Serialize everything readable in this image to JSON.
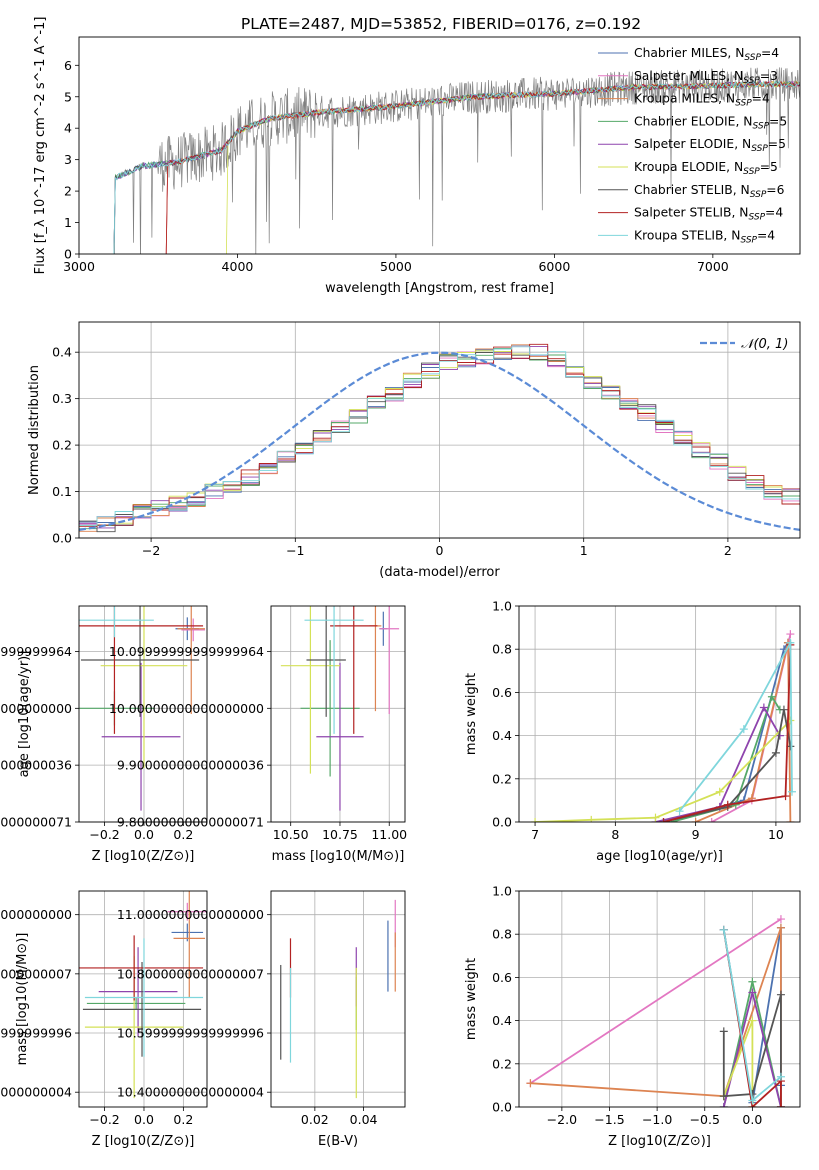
{
  "figure": {
    "title": "PLATE=2487, MJD=53852, FIBERID=0176, z=0.192"
  },
  "series_styles": [
    {
      "name": "Chabrier MILES, N_SSP=4",
      "color": "#4c72b0"
    },
    {
      "name": "Salpeter MILES, N_SSP=3",
      "color": "#e377c2"
    },
    {
      "name": "Kroupa MILES, N_SSP=4",
      "color": "#dd8452"
    },
    {
      "name": "Chabrier ELODIE, N_SSP=5",
      "color": "#55a868"
    },
    {
      "name": "Salpeter ELODIE, N_SSP=5",
      "color": "#8e44ad"
    },
    {
      "name": "Kroupa ELODIE, N_SSP=5",
      "color": "#d4e157"
    },
    {
      "name": "Chabrier STELIB, N_SSP=6",
      "color": "#555555"
    },
    {
      "name": "Salpeter STELIB, N_SSP=4",
      "color": "#b22222"
    },
    {
      "name": "Kroupa STELIB, N_SSP=4",
      "color": "#7fd6dc"
    }
  ],
  "chart_data": [
    {
      "id": "spectrum",
      "type": "line",
      "xlabel": "wavelength [Angstrom, rest frame]",
      "ylabel": "Flux [f_λ 10^-17 erg cm^-2 s^-1 A^-1]",
      "xlim": [
        3000,
        7550
      ],
      "ylim": [
        0,
        6.9
      ],
      "xticks": [
        3000,
        4000,
        5000,
        6000,
        7000
      ],
      "yticks": [
        0,
        1,
        2,
        3,
        4,
        5,
        6
      ],
      "data_color": "#808080",
      "legend": [
        {
          "base": "Chabrier MILES, N",
          "sub": "SSP",
          "rest": "=4"
        },
        {
          "base": "Salpeter MILES, N",
          "sub": "SSP",
          "rest": "=3"
        },
        {
          "base": "Kroupa MILES, N",
          "sub": "SSP",
          "rest": "=4"
        },
        {
          "base": "Chabrier ELODIE, N",
          "sub": "SSP",
          "rest": "=5"
        },
        {
          "base": "Salpeter ELODIE, N",
          "sub": "SSP",
          "rest": "=5"
        },
        {
          "base": "Kroupa ELODIE, N",
          "sub": "SSP",
          "rest": "=5"
        },
        {
          "base": "Chabrier STELIB, N",
          "sub": "SSP",
          "rest": "=6"
        },
        {
          "base": "Salpeter STELIB, N",
          "sub": "SSP",
          "rest": "=4"
        },
        {
          "base": "Kroupa STELIB, N",
          "sub": "SSP",
          "rest": "=4"
        }
      ],
      "continuum_knots": [
        [
          3220,
          2.4
        ],
        [
          3400,
          2.8
        ],
        [
          3600,
          2.9
        ],
        [
          3900,
          3.3
        ],
        [
          4000,
          3.9
        ],
        [
          4200,
          4.3
        ],
        [
          4500,
          4.5
        ],
        [
          5000,
          4.7
        ],
        [
          5500,
          5.0
        ],
        [
          6000,
          5.1
        ],
        [
          6500,
          5.3
        ],
        [
          7000,
          5.35
        ],
        [
          7300,
          5.4
        ]
      ],
      "data_start": 3220
    },
    {
      "id": "residuals",
      "type": "histogram",
      "xlabel": "(data-model)/error",
      "ylabel": "Normed distribution",
      "xlim": [
        -2.5,
        2.5
      ],
      "ylim": [
        0,
        0.465
      ],
      "xticks": [
        -2,
        -1,
        0,
        1,
        2
      ],
      "yticks": [
        0.0,
        0.1,
        0.2,
        0.3,
        0.4
      ],
      "bins_edges": [
        -2.5,
        2.5
      ],
      "nbins": 40,
      "base_values": [
        0.022,
        0.03,
        0.04,
        0.055,
        0.065,
        0.075,
        0.085,
        0.1,
        0.115,
        0.13,
        0.15,
        0.17,
        0.195,
        0.22,
        0.24,
        0.26,
        0.29,
        0.31,
        0.34,
        0.36,
        0.38,
        0.385,
        0.39,
        0.395,
        0.4,
        0.4,
        0.385,
        0.36,
        0.335,
        0.31,
        0.29,
        0.27,
        0.24,
        0.215,
        0.19,
        0.165,
        0.14,
        0.12,
        0.1,
        0.09
      ],
      "normal_label": "𝒩(0, 1)",
      "normal_color": "#5b8bd6"
    },
    {
      "id": "age_vs_Z",
      "type": "errorbar",
      "xlabel": "Z [log10(Z/Z⊙)]",
      "ylabel": "age  [log10(age/yr)]",
      "xlim": [
        -0.33,
        0.32
      ],
      "ylim": [
        9.8,
        10.18
      ],
      "xticks": [
        -0.2,
        0.0,
        0.2
      ],
      "yticks": [
        9.8,
        9.9,
        10.0,
        10.1
      ],
      "points": [
        {
          "s": 0,
          "x": 0.22,
          "y": 10.14,
          "xerr": 0.06,
          "yerr": 0.02
        },
        {
          "s": 1,
          "x": 0.25,
          "y": 10.138,
          "xerr": 0.06,
          "yerr": 0.02
        },
        {
          "s": 2,
          "x": 0.24,
          "y": 10.14,
          "xerr": 0.07,
          "yerr": 0.15
        },
        {
          "s": 3,
          "x": -0.15,
          "y": 10.0,
          "xerr": 0.2,
          "yerr": 0.03
        },
        {
          "s": 4,
          "x": -0.015,
          "y": 9.95,
          "xerr": 0.2,
          "yerr": 0.13
        },
        {
          "s": 5,
          "x": 0.0,
          "y": 10.075,
          "xerr": 0.22,
          "yerr": 0.18
        },
        {
          "s": 6,
          "x": -0.02,
          "y": 10.085,
          "xerr": 0.3,
          "yerr": 0.1
        },
        {
          "s": 7,
          "x": -0.15,
          "y": 10.145,
          "xerr": 0.45,
          "yerr": 0.19
        },
        {
          "s": 8,
          "x": -0.15,
          "y": 10.155,
          "xerr": 0.2,
          "yerr": 0.03
        }
      ]
    },
    {
      "id": "age_vs_mass",
      "type": "errorbar",
      "xlabel": "mass [log10(M/M⊙)]",
      "ylabel": "",
      "xlim": [
        10.4,
        11.08
      ],
      "ylim": [
        9.8,
        10.18
      ],
      "xticks": [
        10.5,
        10.75,
        11.0
      ],
      "yticks": [
        9.8,
        9.9,
        10.0,
        10.1
      ],
      "points": [
        {
          "s": 0,
          "x": 10.97,
          "y": 10.14,
          "xerr": 0.02,
          "yerr": 0.03
        },
        {
          "s": 1,
          "x": 11.0,
          "y": 10.14,
          "xerr": 0.05,
          "yerr": 0.15
        },
        {
          "s": 2,
          "x": 10.93,
          "y": 10.145,
          "xerr": 0.03,
          "yerr": 0.15
        },
        {
          "s": 3,
          "x": 10.7,
          "y": 10.0,
          "xerr": 0.15,
          "yerr": 0.12
        },
        {
          "s": 4,
          "x": 10.75,
          "y": 9.95,
          "xerr": 0.12,
          "yerr": 0.13
        },
        {
          "s": 5,
          "x": 10.6,
          "y": 10.075,
          "xerr": 0.15,
          "yerr": 0.19
        },
        {
          "s": 6,
          "x": 10.68,
          "y": 10.085,
          "xerr": 0.1,
          "yerr": 0.1
        },
        {
          "s": 7,
          "x": 10.82,
          "y": 10.145,
          "xerr": 0.12,
          "yerr": 0.19
        },
        {
          "s": 8,
          "x": 10.72,
          "y": 10.155,
          "xerr": 0.15,
          "yerr": 0.2
        }
      ]
    },
    {
      "id": "mass_weight_vs_age",
      "type": "line",
      "xlabel": "age  [log10(age/yr)]",
      "ylabel": "mass weight",
      "xlim": [
        6.8,
        10.3
      ],
      "ylim": [
        0.0,
        1.0
      ],
      "xticks": [
        7,
        8,
        9,
        10
      ],
      "yticks": [
        0.0,
        0.2,
        0.4,
        0.6,
        0.8,
        1.0
      ],
      "series": [
        {
          "s": 0,
          "x": [
            8.6,
            9.6,
            10.1,
            10.15
          ],
          "y": [
            0.0,
            0.1,
            0.8,
            0.83
          ]
        },
        {
          "s": 1,
          "x": [
            9.2,
            9.7,
            10.18
          ],
          "y": [
            0.0,
            0.1,
            0.87
          ]
        },
        {
          "s": 2,
          "x": [
            9.0,
            9.7,
            10.15,
            10.18
          ],
          "y": [
            0.0,
            0.11,
            0.83,
            0.0
          ]
        },
        {
          "s": 3,
          "x": [
            8.7,
            9.5,
            9.95,
            10.05
          ],
          "y": [
            0.0,
            0.08,
            0.58,
            0.52
          ]
        },
        {
          "s": 4,
          "x": [
            8.5,
            9.3,
            9.85,
            10.05
          ],
          "y": [
            0.0,
            0.07,
            0.53,
            0.4
          ]
        },
        {
          "s": 5,
          "x": [
            7.0,
            7.7,
            8.5,
            9.3,
            10.18
          ],
          "y": [
            0.0,
            0.01,
            0.02,
            0.14,
            0.47
          ]
        },
        {
          "s": 6,
          "x": [
            8.6,
            9.4,
            10.0,
            10.1,
            10.18
          ],
          "y": [
            0.0,
            0.07,
            0.32,
            0.52,
            0.35
          ]
        },
        {
          "s": 7,
          "x": [
            8.6,
            9.4,
            10.12,
            10.18
          ],
          "y": [
            0.0,
            0.08,
            0.12,
            0.82
          ]
        },
        {
          "s": 8,
          "x": [
            8.8,
            9.6,
            10.18,
            10.2
          ],
          "y": [
            0.05,
            0.43,
            0.83,
            0.14
          ]
        }
      ]
    },
    {
      "id": "mass_vs_Z",
      "type": "errorbar",
      "xlabel": "Z [log10(Z/Z⊙)]",
      "ylabel": "mass [log10(M/M⊙)]",
      "xlim": [
        -0.33,
        0.32
      ],
      "ylim": [
        10.35,
        11.08
      ],
      "xticks": [
        -0.2,
        0.0,
        0.2
      ],
      "yticks": [
        10.4,
        10.6,
        10.8,
        11.0
      ],
      "points": [
        {
          "s": 0,
          "x": 0.22,
          "y": 10.94,
          "xerr": 0.08,
          "yerr": 0.03
        },
        {
          "s": 1,
          "x": 0.22,
          "y": 11.01,
          "xerr": 0.1,
          "yerr": 0.03
        },
        {
          "s": 2,
          "x": 0.23,
          "y": 10.92,
          "xerr": 0.08,
          "yerr": 0.2
        },
        {
          "s": 3,
          "x": -0.04,
          "y": 10.7,
          "xerr": 0.25,
          "yerr": 0.02
        },
        {
          "s": 4,
          "x": -0.03,
          "y": 10.74,
          "xerr": 0.2,
          "yerr": 0.15
        },
        {
          "s": 5,
          "x": -0.05,
          "y": 10.62,
          "xerr": 0.25,
          "yerr": 0.24
        },
        {
          "s": 6,
          "x": -0.01,
          "y": 10.68,
          "xerr": 0.3,
          "yerr": 0.16
        },
        {
          "s": 7,
          "x": -0.05,
          "y": 10.82,
          "xerr": 0.35,
          "yerr": 0.11
        },
        {
          "s": 8,
          "x": 0.0,
          "y": 10.72,
          "xerr": 0.3,
          "yerr": 0.2
        }
      ]
    },
    {
      "id": "mass_vs_EBV",
      "type": "errorbar",
      "xlabel": "E(B-V)",
      "ylabel": "",
      "xlim": [
        0.002,
        0.057
      ],
      "ylim": [
        10.35,
        11.08
      ],
      "xticks": [
        0.02,
        0.04
      ],
      "yticks": [
        10.4,
        10.6,
        10.8,
        11.0
      ],
      "points": [
        {
          "s": 0,
          "x": 0.05,
          "y": 10.86,
          "xerr": 0.0,
          "yerr": 0.12
        },
        {
          "s": 1,
          "x": 0.053,
          "y": 10.97,
          "xerr": 0.0,
          "yerr": 0.08
        },
        {
          "s": 2,
          "x": 0.053,
          "y": 10.84,
          "xerr": 0.0,
          "yerr": 0.1
        },
        {
          "s": 3,
          "x": 0.037,
          "y": 10.7,
          "xerr": 0.0,
          "yerr": 0.09
        },
        {
          "s": 4,
          "x": 0.037,
          "y": 10.79,
          "xerr": 0.0,
          "yerr": 0.1
        },
        {
          "s": 5,
          "x": 0.037,
          "y": 10.6,
          "xerr": 0.0,
          "yerr": 0.22
        },
        {
          "s": 6,
          "x": 0.006,
          "y": 10.67,
          "xerr": 0.0,
          "yerr": 0.16
        },
        {
          "s": 7,
          "x": 0.01,
          "y": 10.82,
          "xerr": 0.0,
          "yerr": 0.1
        },
        {
          "s": 8,
          "x": 0.01,
          "y": 10.66,
          "xerr": 0.0,
          "yerr": 0.16
        }
      ]
    },
    {
      "id": "mass_weight_vs_Z",
      "type": "line",
      "xlabel": "Z [log10(Z/Z⊙)]",
      "ylabel": "mass weight",
      "xlim": [
        -2.45,
        0.5
      ],
      "ylim": [
        0.0,
        1.0
      ],
      "xticks": [
        -2.0,
        -1.5,
        -1.0,
        -0.5,
        0.0
      ],
      "yticks": [
        0.0,
        0.2,
        0.4,
        0.6,
        0.8,
        1.0
      ],
      "series": [
        {
          "s": 0,
          "x": [
            -0.3,
            0.0,
            0.3,
            0.3
          ],
          "y": [
            0.82,
            0.02,
            0.83,
            0.1
          ]
        },
        {
          "s": 1,
          "x": [
            -2.33,
            0.3
          ],
          "y": [
            0.11,
            0.87
          ]
        },
        {
          "s": 2,
          "x": [
            -2.33,
            -0.3,
            0.3,
            0.3
          ],
          "y": [
            0.11,
            0.05,
            0.83,
            0.0
          ]
        },
        {
          "s": 3,
          "x": [
            -0.3,
            0.0,
            0.3
          ],
          "y": [
            0.0,
            0.58,
            0.0
          ]
        },
        {
          "s": 4,
          "x": [
            -0.3,
            0.0,
            0.3
          ],
          "y": [
            0.0,
            0.53,
            0.0
          ]
        },
        {
          "s": 5,
          "x": [
            -0.3,
            0.0,
            0.0
          ],
          "y": [
            0.05,
            0.4,
            0.0
          ]
        },
        {
          "s": 6,
          "x": [
            -0.3,
            -0.3,
            0.0,
            0.3,
            0.3
          ],
          "y": [
            0.35,
            0.05,
            0.06,
            0.52,
            0.0
          ]
        },
        {
          "s": 7,
          "x": [
            -0.3,
            0.0,
            0.3,
            0.3
          ],
          "y": [
            0.82,
            0.0,
            0.12,
            0.0
          ]
        },
        {
          "s": 8,
          "x": [
            -0.3,
            0.0,
            0.3
          ],
          "y": [
            0.82,
            0.03,
            0.14
          ]
        }
      ]
    }
  ]
}
